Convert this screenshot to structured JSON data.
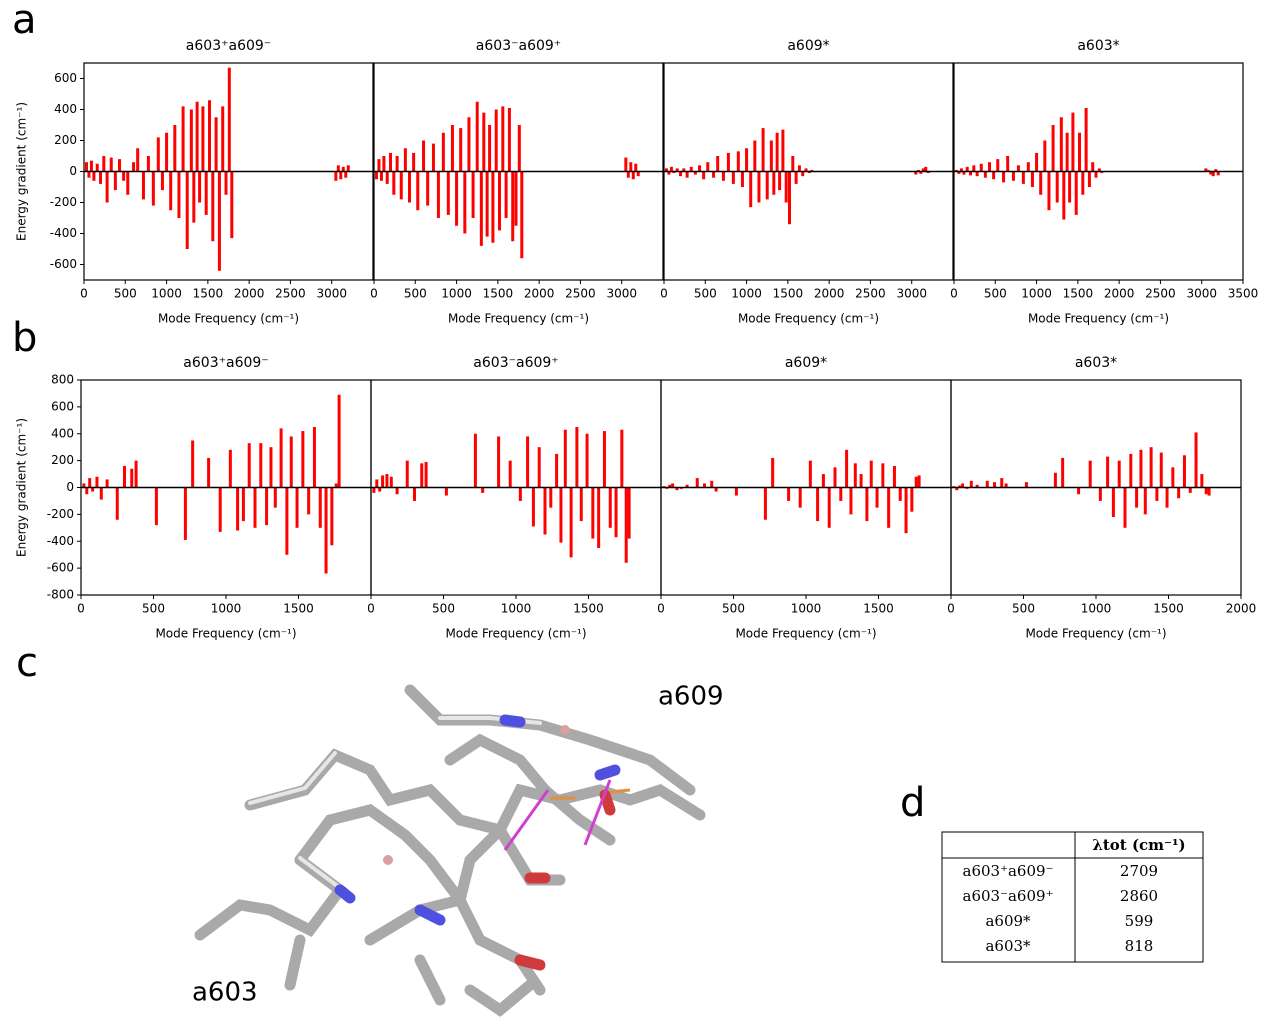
{
  "panel_labels": [
    "a",
    "b",
    "c",
    "d"
  ],
  "chart_data": [
    {
      "type": "bar",
      "title": "a603⁺a609⁻",
      "xlabel": "Mode Frequency (cm⁻¹)",
      "ylabel": "Energy gradient (cm⁻¹)",
      "color": "#ff0000",
      "x": [
        30,
        60,
        90,
        120,
        160,
        200,
        240,
        280,
        330,
        380,
        430,
        480,
        530,
        600,
        650,
        720,
        780,
        840,
        900,
        950,
        1000,
        1050,
        1100,
        1150,
        1200,
        1250,
        1300,
        1330,
        1370,
        1400,
        1440,
        1480,
        1520,
        1560,
        1600,
        1640,
        1680,
        1720,
        1760,
        1790,
        3050,
        3080,
        3110,
        3140,
        3170,
        3200
      ],
      "values": [
        60,
        -40,
        70,
        -60,
        50,
        -80,
        100,
        -200,
        90,
        -120,
        80,
        -60,
        -150,
        60,
        150,
        -180,
        100,
        -220,
        220,
        -120,
        250,
        -250,
        300,
        -300,
        420,
        -500,
        400,
        -330,
        450,
        -200,
        420,
        -280,
        460,
        -450,
        350,
        -640,
        420,
        -150,
        670,
        -430,
        -60,
        40,
        -50,
        30,
        -40,
        40
      ],
      "xlim": [
        0,
        3500
      ],
      "ylim": [
        -700,
        700
      ],
      "xticks": [
        0,
        500,
        1000,
        1500,
        2000,
        2500,
        3000
      ],
      "yticks": [
        -600,
        -400,
        -200,
        0,
        200,
        400,
        600
      ]
    },
    {
      "type": "bar",
      "title": "a603⁻a609⁺",
      "xlabel": "Mode Frequency (cm⁻¹)",
      "color": "#ff0000",
      "x": [
        30,
        60,
        90,
        120,
        160,
        200,
        240,
        280,
        330,
        380,
        430,
        480,
        530,
        600,
        650,
        720,
        780,
        840,
        900,
        950,
        1000,
        1050,
        1100,
        1150,
        1200,
        1250,
        1300,
        1330,
        1370,
        1400,
        1440,
        1480,
        1520,
        1560,
        1600,
        1640,
        1680,
        1720,
        1760,
        1790,
        3050,
        3080,
        3110,
        3140,
        3170,
        3200
      ],
      "values": [
        -50,
        80,
        -60,
        100,
        -80,
        120,
        -150,
        100,
        -180,
        150,
        -200,
        120,
        -250,
        200,
        -220,
        180,
        -300,
        250,
        -280,
        300,
        -350,
        280,
        -400,
        350,
        -300,
        450,
        -480,
        380,
        -420,
        300,
        -460,
        400,
        -380,
        420,
        -300,
        410,
        -450,
        -350,
        300,
        -560,
        90,
        -40,
        60,
        -50,
        50,
        -30
      ],
      "xlim": [
        0,
        3500
      ],
      "ylim": [
        -700,
        700
      ],
      "xticks": [
        0,
        500,
        1000,
        1500,
        2000,
        2500,
        3000
      ]
    },
    {
      "type": "bar",
      "title": "a609*",
      "xlabel": "Mode Frequency (cm⁻¹)",
      "color": "#ff0000",
      "x": [
        30,
        60,
        90,
        120,
        160,
        200,
        240,
        280,
        330,
        380,
        430,
        480,
        530,
        600,
        650,
        720,
        780,
        840,
        900,
        950,
        1000,
        1050,
        1100,
        1150,
        1200,
        1250,
        1300,
        1330,
        1370,
        1400,
        1440,
        1480,
        1520,
        1560,
        1600,
        1640,
        1680,
        1720,
        1760,
        1790,
        3050,
        3080,
        3110,
        3140,
        3170,
        3200
      ],
      "values": [
        20,
        -20,
        30,
        -10,
        20,
        -30,
        20,
        -40,
        30,
        -20,
        40,
        -50,
        60,
        -40,
        100,
        -60,
        120,
        -80,
        130,
        -100,
        150,
        -230,
        200,
        -200,
        280,
        -180,
        200,
        -150,
        250,
        -120,
        270,
        -200,
        -340,
        100,
        -80,
        40,
        -30,
        20,
        -10,
        10,
        -20,
        10,
        -15,
        20,
        30,
        -10
      ],
      "xlim": [
        0,
        3500
      ],
      "ylim": [
        -700,
        700
      ],
      "xticks": [
        0,
        500,
        1000,
        1500,
        2000,
        2500,
        3000
      ]
    },
    {
      "type": "bar",
      "title": "a603*",
      "xlabel": "Mode Frequency (cm⁻¹)",
      "color": "#ff0000",
      "x": [
        30,
        60,
        90,
        120,
        160,
        200,
        240,
        280,
        330,
        380,
        430,
        480,
        530,
        600,
        650,
        720,
        780,
        840,
        900,
        950,
        1000,
        1050,
        1100,
        1150,
        1200,
        1250,
        1300,
        1330,
        1370,
        1400,
        1440,
        1480,
        1520,
        1560,
        1600,
        1640,
        1680,
        1720,
        1760,
        1790,
        3050,
        3080,
        3110,
        3140,
        3170,
        3200
      ],
      "values": [
        10,
        -15,
        20,
        -20,
        30,
        -25,
        40,
        -30,
        50,
        -40,
        60,
        -50,
        80,
        -70,
        100,
        -60,
        40,
        -80,
        60,
        -100,
        120,
        -150,
        200,
        -250,
        300,
        -200,
        350,
        -310,
        250,
        -200,
        380,
        -280,
        250,
        -150,
        410,
        -100,
        60,
        -40,
        20,
        -10,
        20,
        10,
        -20,
        -30,
        15,
        -25
      ],
      "xlim": [
        0,
        3500
      ],
      "ylim": [
        -700,
        700
      ],
      "xticks": [
        0,
        500,
        1000,
        1500,
        2000,
        2500,
        3000,
        3500
      ]
    },
    {
      "type": "bar",
      "title": "a603⁺a609⁻",
      "xlabel": "Mode Frequency (cm⁻¹)",
      "ylabel": "Energy gradient (cm⁻¹)",
      "color": "#ff0000",
      "x": [
        20,
        40,
        60,
        80,
        110,
        140,
        180,
        250,
        300,
        350,
        380,
        520,
        720,
        770,
        880,
        960,
        1030,
        1080,
        1120,
        1160,
        1200,
        1240,
        1280,
        1310,
        1340,
        1380,
        1420,
        1450,
        1490,
        1530,
        1570,
        1610,
        1650,
        1690,
        1730,
        1760,
        1780
      ],
      "values": [
        30,
        -50,
        70,
        -30,
        80,
        -90,
        60,
        -240,
        160,
        140,
        200,
        -280,
        -390,
        350,
        220,
        -330,
        280,
        -320,
        -250,
        330,
        -300,
        330,
        -280,
        300,
        -150,
        440,
        -500,
        380,
        -300,
        420,
        -200,
        450,
        -300,
        -640,
        -430,
        30,
        690
      ],
      "xlim": [
        0,
        2000
      ],
      "ylim": [
        -800,
        800
      ],
      "xticks": [
        0,
        500,
        1000,
        1500
      ],
      "yticks": [
        -800,
        -600,
        -400,
        -200,
        0,
        200,
        400,
        600,
        800
      ]
    },
    {
      "type": "bar",
      "title": "a603⁻a609⁺",
      "xlabel": "Mode Frequency (cm⁻¹)",
      "color": "#ff0000",
      "x": [
        20,
        40,
        60,
        80,
        110,
        140,
        180,
        250,
        300,
        350,
        380,
        520,
        720,
        770,
        880,
        960,
        1030,
        1080,
        1120,
        1160,
        1200,
        1240,
        1280,
        1310,
        1340,
        1380,
        1420,
        1450,
        1490,
        1530,
        1570,
        1610,
        1650,
        1690,
        1730,
        1760,
        1780
      ],
      "values": [
        -40,
        60,
        -30,
        90,
        100,
        80,
        -50,
        200,
        -100,
        180,
        190,
        -60,
        400,
        -40,
        380,
        200,
        -100,
        380,
        -290,
        300,
        -350,
        -150,
        250,
        -410,
        430,
        -520,
        450,
        -250,
        400,
        -380,
        -450,
        420,
        -300,
        -370,
        430,
        -560,
        -380
      ],
      "xlim": [
        0,
        2000
      ],
      "ylim": [
        -800,
        800
      ],
      "xticks": [
        0,
        500,
        1000,
        1500
      ]
    },
    {
      "type": "bar",
      "title": "a609*",
      "xlabel": "Mode Frequency (cm⁻¹)",
      "color": "#ff0000",
      "x": [
        20,
        40,
        60,
        80,
        110,
        140,
        180,
        250,
        300,
        350,
        380,
        520,
        720,
        770,
        880,
        960,
        1030,
        1080,
        1120,
        1160,
        1200,
        1240,
        1280,
        1310,
        1340,
        1380,
        1420,
        1450,
        1490,
        1530,
        1570,
        1610,
        1650,
        1690,
        1730,
        1760,
        1780
      ],
      "values": [
        10,
        -10,
        20,
        30,
        -20,
        -10,
        20,
        70,
        30,
        50,
        -30,
        -60,
        -240,
        220,
        -100,
        -150,
        200,
        -250,
        100,
        -300,
        150,
        -100,
        280,
        -200,
        180,
        100,
        -250,
        200,
        -150,
        180,
        -300,
        160,
        -100,
        -340,
        -180,
        80,
        90
      ],
      "xlim": [
        0,
        2000
      ],
      "ylim": [
        -800,
        800
      ],
      "xticks": [
        0,
        500,
        1000,
        1500
      ]
    },
    {
      "type": "bar",
      "title": "a603*",
      "xlabel": "Mode Frequency (cm⁻¹)",
      "color": "#ff0000",
      "x": [
        20,
        40,
        60,
        80,
        110,
        140,
        180,
        250,
        300,
        350,
        380,
        520,
        720,
        770,
        880,
        960,
        1030,
        1080,
        1120,
        1160,
        1200,
        1240,
        1280,
        1310,
        1340,
        1380,
        1420,
        1450,
        1490,
        1530,
        1570,
        1610,
        1650,
        1690,
        1730,
        1760,
        1780
      ],
      "values": [
        10,
        -20,
        15,
        30,
        -10,
        50,
        20,
        50,
        40,
        70,
        30,
        40,
        110,
        220,
        -50,
        200,
        -100,
        230,
        -220,
        200,
        -300,
        250,
        -150,
        280,
        -200,
        300,
        -100,
        260,
        -150,
        150,
        -80,
        240,
        -40,
        410,
        100,
        -50,
        -60
      ],
      "xlim": [
        0,
        2000
      ],
      "ylim": [
        -800,
        800
      ],
      "xticks": [
        0,
        500,
        1000,
        1500,
        2000
      ]
    }
  ],
  "image_labels": [
    "a609",
    "a603"
  ],
  "table": {
    "header": "λtot (cm⁻¹)",
    "rows": [
      [
        "a603⁺a609⁻",
        2709
      ],
      [
        "a603⁻a609⁺",
        2860
      ],
      [
        "a609*",
        599
      ],
      [
        "a603*",
        818
      ]
    ]
  }
}
